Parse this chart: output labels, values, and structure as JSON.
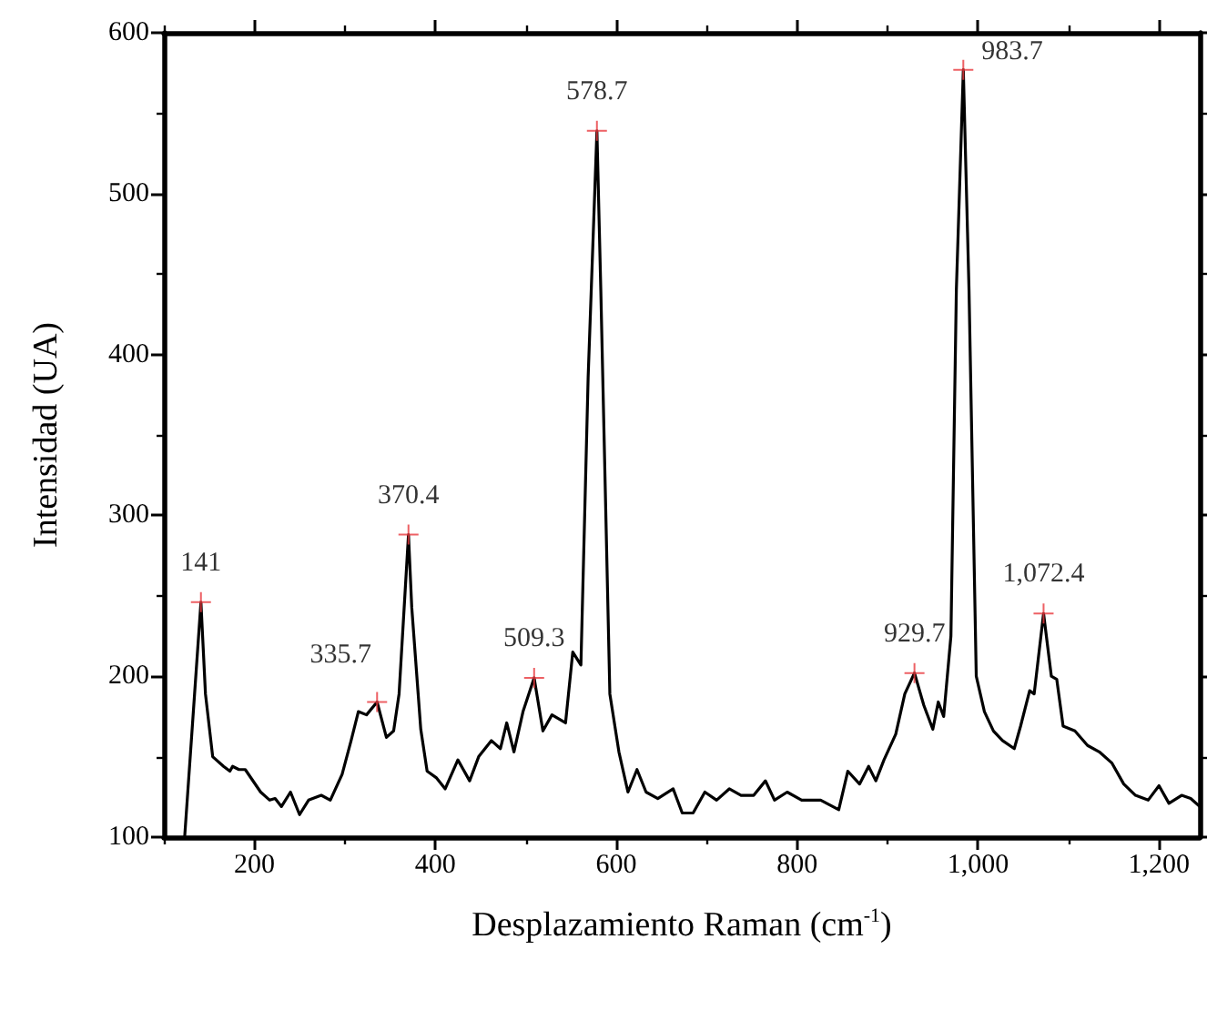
{
  "chart_data": {
    "type": "line",
    "xlabel": "Desplazamiento Raman (cm$^{-1}$)",
    "ylabel": "Intensidad (UA)",
    "xlim": [
      100,
      1245
    ],
    "ylim": [
      100,
      600
    ],
    "xticks": [
      {
        "value": 100,
        "label": null
      },
      200,
      {
        "value": 300,
        "label": null
      },
      400,
      {
        "value": 500,
        "label": null
      },
      600,
      {
        "value": 700,
        "label": null
      },
      800,
      {
        "value": 900,
        "label": null
      },
      {
        "value": 1000,
        "label": "1,000"
      },
      {
        "value": 1100,
        "label": null
      },
      {
        "value": 1200,
        "label": "1,200"
      }
    ],
    "yticks": [
      100,
      {
        "value": 150,
        "label": null
      },
      200,
      {
        "value": 250,
        "label": null
      },
      300,
      {
        "value": 350,
        "label": null
      },
      400,
      {
        "value": 450,
        "label": null
      },
      500,
      {
        "value": 550,
        "label": null
      },
      600
    ],
    "grid": false,
    "marker": "none",
    "line_style": "solid",
    "x": [
      123,
      141,
      146,
      154,
      166,
      173,
      176,
      183,
      190,
      207,
      217,
      223,
      230,
      240,
      250,
      260,
      274,
      284,
      297,
      307,
      315,
      324,
      335.7,
      346,
      354,
      360,
      370.4,
      374,
      384,
      391,
      401,
      411,
      425,
      438,
      448,
      462,
      472,
      479,
      487,
      497,
      509.3,
      519,
      529,
      544,
      552,
      561,
      569,
      578.7,
      583,
      593,
      603,
      613,
      623,
      633,
      646,
      663,
      673,
      685,
      698,
      711,
      725,
      738,
      752,
      765,
      775,
      789,
      805,
      826,
      846,
      856,
      869,
      879,
      887,
      896,
      909,
      919,
      929.7,
      940,
      950,
      956,
      962,
      970,
      976,
      983.7,
      990,
      998,
      1007,
      1017,
      1027,
      1040,
      1047,
      1057,
      1062,
      1072.4,
      1081,
      1087,
      1094,
      1107,
      1121,
      1134,
      1148,
      1161,
      1174,
      1188,
      1200,
      1211,
      1225,
      1235,
      1245
    ],
    "series": [
      {
        "color": "#000000",
        "values": [
          100,
          246,
          189,
          150,
          144,
          141,
          144,
          142,
          142,
          128,
          123,
          124,
          119,
          128,
          114,
          123,
          126,
          123,
          139,
          160,
          178,
          176,
          184,
          162,
          166,
          189,
          288,
          243,
          167,
          141,
          137,
          130,
          148,
          135,
          150,
          160,
          155,
          171,
          153,
          178,
          199,
          166,
          176,
          171,
          215,
          207,
          386,
          539,
          440,
          189,
          153,
          128,
          142,
          128,
          124,
          130,
          115,
          115,
          128,
          123,
          130,
          126,
          126,
          135,
          123,
          128,
          123,
          123,
          117,
          141,
          133,
          144,
          135,
          148,
          164,
          189,
          202,
          182,
          167,
          184,
          175,
          225,
          440,
          577,
          440,
          200,
          178,
          166,
          160,
          155,
          169,
          191,
          189,
          239,
          200,
          198,
          169,
          166,
          157,
          153,
          146,
          133,
          126,
          123,
          132,
          121,
          126,
          124,
          119
        ]
      }
    ],
    "annotations": [
      {
        "text": "141",
        "x": 141,
        "y": 246
      },
      {
        "text": "335.7",
        "x": 335.7,
        "y": 184
      },
      {
        "text": "370.4",
        "x": 370.4,
        "y": 288
      },
      {
        "text": "509.3",
        "x": 509.3,
        "y": 199
      },
      {
        "text": "578.7",
        "x": 578.7,
        "y": 539
      },
      {
        "text": "929.7",
        "x": 929.7,
        "y": 202
      },
      {
        "text": "983.7",
        "x": 983.7,
        "y": 577
      },
      {
        "text": "1,072.4",
        "x": 1072.4,
        "y": 239
      }
    ]
  }
}
